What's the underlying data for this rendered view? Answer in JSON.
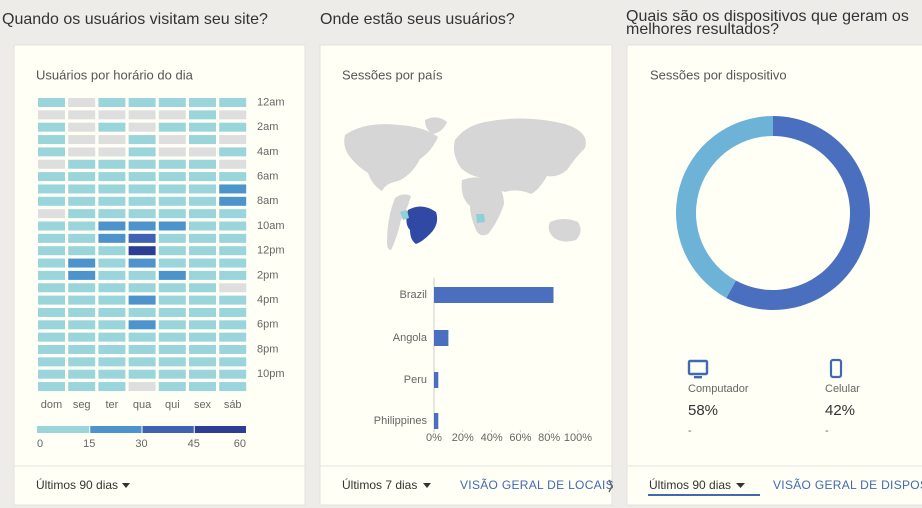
{
  "sections": [
    {
      "heading": "Quando os usuários visitam seu site?",
      "footer_range": "Últimos 90 dias"
    },
    {
      "heading": "Onde estão seus usuários?",
      "footer_range": "Últimos 7 dias",
      "footer_link": "VISÃO GERAL DE LOCAIS"
    },
    {
      "heading": "Quais são os dispositivos que geram os melhores resultados?",
      "footer_range": "Últimos 90 dias",
      "footer_link": "VISÃO GERAL DE DISPOSITIVOS"
    }
  ],
  "chart_data": [
    {
      "type": "heatmap",
      "title": "Usuários por horário do dia",
      "x": [
        "dom",
        "seg",
        "ter",
        "qua",
        "qui",
        "sex",
        "sáb"
      ],
      "y": [
        "12am",
        null,
        "2am",
        null,
        "4am",
        null,
        "6am",
        null,
        "8am",
        null,
        "10am",
        null,
        "12pm",
        null,
        "2pm",
        null,
        "4pm",
        null,
        "6pm",
        null,
        "8pm",
        null,
        "10pm",
        null
      ],
      "values": [
        [
          8,
          0,
          8,
          8,
          8,
          8,
          8
        ],
        [
          0,
          0,
          0,
          0,
          0,
          8,
          0
        ],
        [
          8,
          0,
          8,
          0,
          8,
          8,
          8
        ],
        [
          8,
          0,
          0,
          8,
          0,
          8,
          0
        ],
        [
          8,
          0,
          0,
          8,
          0,
          0,
          8
        ],
        [
          0,
          8,
          8,
          8,
          8,
          8,
          0
        ],
        [
          8,
          8,
          8,
          8,
          8,
          8,
          8
        ],
        [
          8,
          8,
          8,
          8,
          8,
          8,
          20
        ],
        [
          8,
          8,
          8,
          8,
          8,
          8,
          20
        ],
        [
          0,
          8,
          8,
          8,
          8,
          8,
          8
        ],
        [
          8,
          8,
          20,
          20,
          20,
          8,
          8
        ],
        [
          8,
          8,
          20,
          35,
          8,
          8,
          8
        ],
        [
          8,
          8,
          8,
          50,
          8,
          8,
          8
        ],
        [
          8,
          20,
          8,
          20,
          8,
          8,
          8
        ],
        [
          8,
          20,
          8,
          8,
          20,
          8,
          8
        ],
        [
          8,
          8,
          8,
          8,
          8,
          8,
          0
        ],
        [
          8,
          8,
          8,
          20,
          8,
          8,
          8
        ],
        [
          8,
          8,
          8,
          8,
          8,
          8,
          8
        ],
        [
          8,
          8,
          8,
          20,
          8,
          8,
          8
        ],
        [
          8,
          8,
          8,
          8,
          8,
          8,
          8
        ],
        [
          8,
          8,
          8,
          8,
          8,
          8,
          8
        ],
        [
          8,
          8,
          8,
          8,
          8,
          8,
          8
        ],
        [
          8,
          8,
          8,
          8,
          8,
          8,
          8
        ],
        [
          8,
          8,
          8,
          0,
          8,
          8,
          8
        ]
      ],
      "colorscale": {
        "ticks": [
          0,
          15,
          30,
          45,
          60
        ],
        "colors": [
          "#99d5db",
          "#4d93cc",
          "#3f62b4",
          "#2b3d94"
        ],
        "empty_color": "#dedede"
      }
    },
    {
      "type": "bar",
      "orientation": "horizontal",
      "title": "Sessões por país",
      "categories": [
        "Brazil",
        "Angola",
        "Peru",
        "Philippines"
      ],
      "values": [
        83,
        10,
        3,
        3
      ],
      "color": "#4a6fbf",
      "xlim": [
        0,
        100
      ],
      "xticks": [
        {
          "value": 0,
          "label": "0%"
        },
        {
          "value": 20,
          "label": "20%"
        },
        {
          "value": 40,
          "label": "40%"
        },
        {
          "value": 60,
          "label": "60%"
        },
        {
          "value": 80,
          "label": "80%"
        },
        {
          "value": 100,
          "label": "100%"
        }
      ]
    },
    {
      "type": "donut",
      "title": "Sessões por dispositivo",
      "categories": [
        "Computador",
        "Celular"
      ],
      "values": [
        58,
        42
      ],
      "value_labels": [
        "58%",
        "42%"
      ],
      "colors": [
        "#4a6fbf",
        "#6db3d8"
      ],
      "changes": [
        "-",
        "-"
      ]
    }
  ]
}
